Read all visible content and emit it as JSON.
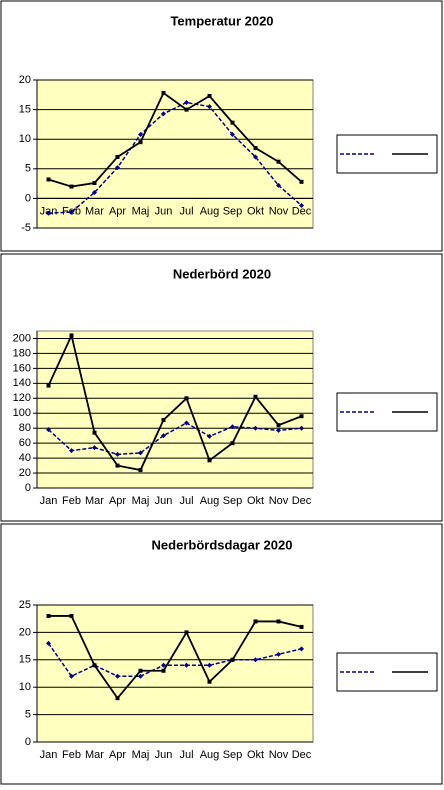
{
  "chart_data": [
    {
      "type": "line",
      "title": "Temperatur 2020",
      "categories": [
        "Jan",
        "Feb",
        "Mar",
        "Apr",
        "Maj",
        "Jun",
        "Jul",
        "Aug",
        "Sep",
        "Okt",
        "Nov",
        "Dec"
      ],
      "series": [
        {
          "color": "#00008b",
          "dashed": true,
          "values": [
            -2.5,
            -2.3,
            1,
            5.2,
            10.8,
            14.3,
            16.2,
            15.5,
            10.8,
            7,
            2.2,
            -1.2
          ]
        },
        {
          "color": "#000000",
          "dashed": false,
          "values": [
            3.2,
            2,
            2.6,
            7,
            9.5,
            17.8,
            15,
            17.3,
            12.8,
            8.5,
            6.2,
            2.8
          ]
        }
      ],
      "ylim": [
        -5,
        20
      ],
      "yticks": [
        -5,
        0,
        5,
        10,
        15,
        20
      ],
      "grid": true,
      "plot_color": "#ffffc0"
    },
    {
      "type": "line",
      "title": "Nederbörd 2020",
      "categories": [
        "Jan",
        "Feb",
        "Mar",
        "Apr",
        "Maj",
        "Jun",
        "Jul",
        "Aug",
        "Sep",
        "Okt",
        "Nov",
        "Dec"
      ],
      "series": [
        {
          "color": "#00008b",
          "dashed": true,
          "values": [
            78,
            50,
            54,
            45,
            47,
            70,
            87,
            69,
            82,
            80,
            77,
            80
          ]
        },
        {
          "color": "#000000",
          "dashed": false,
          "values": [
            137,
            204,
            74,
            30,
            24,
            91,
            120,
            37,
            60,
            122,
            84,
            96
          ]
        }
      ],
      "ylim": [
        0,
        210
      ],
      "yticks": [
        0,
        20,
        40,
        60,
        80,
        100,
        120,
        140,
        160,
        180,
        200
      ],
      "grid": true,
      "plot_color": "#ffffc0"
    },
    {
      "type": "line",
      "title": "Nederbördsdagar 2020",
      "categories": [
        "Jan",
        "Feb",
        "Mar",
        "Apr",
        "Maj",
        "Jun",
        "Jul",
        "Aug",
        "Sep",
        "Okt",
        "Nov",
        "Dec"
      ],
      "series": [
        {
          "color": "#00008b",
          "dashed": true,
          "values": [
            18,
            12,
            14,
            12,
            12,
            14,
            14,
            14,
            15,
            15,
            16,
            17
          ]
        },
        {
          "color": "#000000",
          "dashed": false,
          "values": [
            23,
            23,
            14,
            8,
            13,
            13,
            20,
            11,
            15,
            22,
            22,
            21
          ]
        }
      ],
      "ylim": [
        0,
        25
      ],
      "yticks": [
        0,
        5,
        10,
        15,
        20,
        25
      ],
      "grid": true,
      "plot_color": "#ffffc0"
    }
  ]
}
